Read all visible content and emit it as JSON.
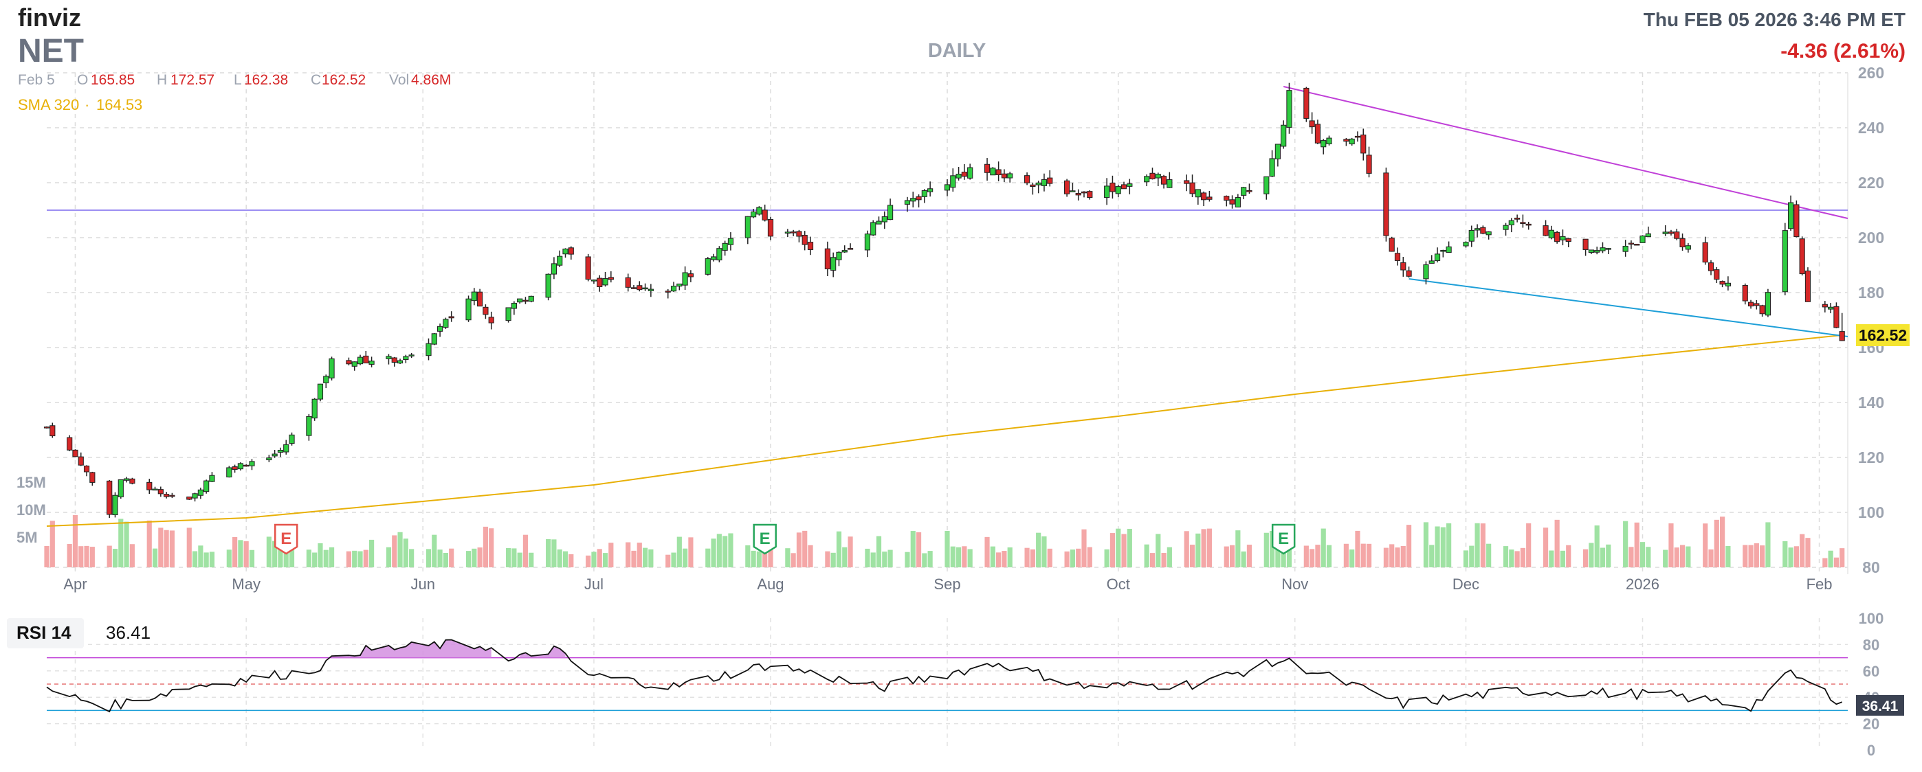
{
  "header": {
    "logo": "finviz",
    "ticker": "NET",
    "period": "DAILY",
    "datetime": "Thu FEB 05 2026 3:46 PM ET",
    "change": "-4.36 (2.61%)"
  },
  "ohlc": {
    "date": "Feb 5",
    "o_label": "O",
    "o": "165.85",
    "h_label": "H",
    "h": "172.57",
    "l_label": "L",
    "l": "162.38",
    "c_label": "C",
    "c": "162.52",
    "vol_label": "Vol",
    "vol": "4.86M"
  },
  "sma": {
    "label": "SMA 320",
    "sep": "·",
    "value": "164.53"
  },
  "price_tag": "162.52",
  "volume_axis": [
    "15M",
    "10M",
    "5M"
  ],
  "price_axis": [
    "260",
    "240",
    "220",
    "200",
    "180",
    "160",
    "140",
    "120",
    "100",
    "80"
  ],
  "months": [
    "Apr",
    "May",
    "Jun",
    "Jul",
    "Aug",
    "Sep",
    "Oct",
    "Nov",
    "Dec",
    "2026",
    "Feb"
  ],
  "earnings": [
    {
      "label": "E",
      "date": "2025-05-08",
      "color": "#e5534b"
    },
    {
      "label": "E",
      "date": "2025-07-31",
      "color": "#26a65b"
    },
    {
      "label": "E",
      "date": "2025-10-30",
      "color": "#26a65b"
    }
  ],
  "rsi": {
    "label": "RSI 14",
    "value": "36.41",
    "axis": [
      "100",
      "80",
      "60",
      "40",
      "20",
      "0"
    ],
    "tag": "36.41"
  },
  "colors": {
    "up": "#2ecc40",
    "down": "#d62728",
    "sma": "#e8b007",
    "horizontal": "#7b68ee",
    "resistance": "#c040d8",
    "support": "#1e9fd8",
    "rsi_fill": "#d38fe0",
    "rsi_upper": "#c040d8",
    "rsi_lower": "#1e9fd8"
  },
  "chart_data": {
    "type": "candlestick",
    "title": "NET",
    "xlabel": "",
    "ylabel": "",
    "ylim": [
      80,
      260
    ],
    "x_range": [
      "2025-03-27",
      "2026-02-06"
    ],
    "horizontal_line": 210,
    "trendlines": [
      {
        "name": "resistance",
        "from": [
          "2025-10-30",
          255
        ],
        "to": [
          "2026-02-06",
          207
        ]
      },
      {
        "name": "support",
        "from": [
          "2025-11-21",
          185
        ],
        "to": [
          "2026-02-06",
          164
        ]
      }
    ],
    "sma_320": [
      [
        "2025-03-27",
        95
      ],
      [
        "2025-05-01",
        98
      ],
      [
        "2025-06-01",
        104
      ],
      [
        "2025-07-01",
        110
      ],
      [
        "2025-08-01",
        119
      ],
      [
        "2025-09-01",
        128
      ],
      [
        "2025-10-01",
        135
      ],
      [
        "2025-11-01",
        143
      ],
      [
        "2025-12-01",
        150
      ],
      [
        "2026-01-01",
        157
      ],
      [
        "2026-02-05",
        164.53
      ]
    ],
    "rsi_14": [
      [
        "2025-03-27",
        45
      ],
      [
        "2025-04-07",
        33
      ],
      [
        "2025-04-21",
        48
      ],
      [
        "2025-05-12",
        60
      ],
      [
        "2025-05-20",
        75
      ],
      [
        "2025-06-05",
        80
      ],
      [
        "2025-06-12",
        79
      ],
      [
        "2025-06-16",
        67
      ],
      [
        "2025-06-24",
        77
      ],
      [
        "2025-06-30",
        57
      ],
      [
        "2025-07-15",
        48
      ],
      [
        "2025-08-01",
        65
      ],
      [
        "2025-08-20",
        47
      ],
      [
        "2025-09-10",
        66
      ],
      [
        "2025-09-25",
        48
      ],
      [
        "2025-10-15",
        50
      ],
      [
        "2025-10-30",
        68
      ],
      [
        "2025-11-20",
        35
      ],
      [
        "2025-12-10",
        45
      ],
      [
        "2026-01-05",
        42
      ],
      [
        "2026-01-20",
        33
      ],
      [
        "2026-01-27",
        58
      ],
      [
        "2026-02-05",
        36.41
      ]
    ],
    "volume_m": [
      [
        "2025-04-07",
        15
      ],
      [
        "2025-05-08",
        9
      ],
      [
        "2025-06-12",
        12
      ],
      [
        "2025-07-01",
        9
      ],
      [
        "2025-07-31",
        11
      ],
      [
        "2025-10-30",
        12
      ],
      [
        "2025-11-20",
        13
      ],
      [
        "2026-01-26",
        15
      ],
      [
        "2026-02-05",
        4.86
      ]
    ],
    "last_candle": {
      "date": "2026-02-05",
      "open": 165.85,
      "high": 172.57,
      "low": 162.38,
      "close": 162.52,
      "volume": "4.86M"
    }
  }
}
